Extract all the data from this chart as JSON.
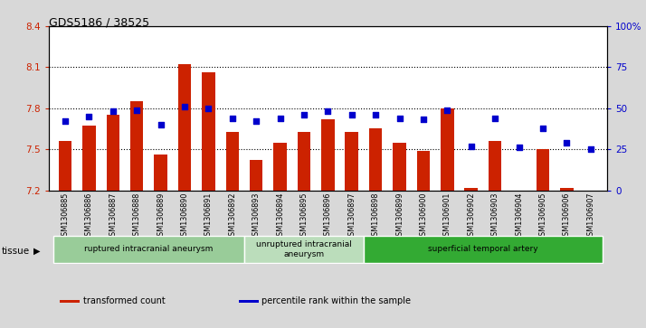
{
  "title": "GDS5186 / 38525",
  "samples": [
    "GSM1306885",
    "GSM1306886",
    "GSM1306887",
    "GSM1306888",
    "GSM1306889",
    "GSM1306890",
    "GSM1306891",
    "GSM1306892",
    "GSM1306893",
    "GSM1306894",
    "GSM1306895",
    "GSM1306896",
    "GSM1306897",
    "GSM1306898",
    "GSM1306899",
    "GSM1306900",
    "GSM1306901",
    "GSM1306902",
    "GSM1306903",
    "GSM1306904",
    "GSM1306905",
    "GSM1306906",
    "GSM1306907"
  ],
  "transformed_count": [
    7.56,
    7.67,
    7.75,
    7.85,
    7.46,
    8.12,
    8.06,
    7.63,
    7.42,
    7.55,
    7.63,
    7.72,
    7.63,
    7.65,
    7.55,
    7.49,
    7.8,
    7.22,
    7.56,
    7.2,
    7.5,
    7.22,
    7.2
  ],
  "percentile_rank": [
    42,
    45,
    48,
    49,
    40,
    51,
    50,
    44,
    42,
    44,
    46,
    48,
    46,
    46,
    44,
    43,
    49,
    27,
    44,
    26,
    38,
    29,
    25
  ],
  "ylim_left": [
    7.2,
    8.4
  ],
  "ylim_right": [
    0,
    100
  ],
  "yticks_left": [
    7.2,
    7.5,
    7.8,
    8.1,
    8.4
  ],
  "yticks_right": [
    0,
    25,
    50,
    75,
    100
  ],
  "ytick_labels_left": [
    "7.2",
    "7.5",
    "7.8",
    "8.1",
    "8.4"
  ],
  "ytick_labels_right": [
    "0",
    "25",
    "50",
    "75",
    "100%"
  ],
  "bar_color": "#cc2200",
  "dot_color": "#0000cc",
  "bg_color": "#d8d8d8",
  "plot_bg_color": "#ffffff",
  "tissue_groups": [
    {
      "label": "ruptured intracranial aneurysm",
      "start": 0,
      "end": 8,
      "color": "#99cc99"
    },
    {
      "label": "unruptured intracranial\naneurysm",
      "start": 8,
      "end": 13,
      "color": "#bbddbb"
    },
    {
      "label": "superficial temporal artery",
      "start": 13,
      "end": 23,
      "color": "#33aa33"
    }
  ],
  "legend_items": [
    {
      "label": "transformed count",
      "color": "#cc2200"
    },
    {
      "label": "percentile rank within the sample",
      "color": "#0000cc"
    }
  ]
}
